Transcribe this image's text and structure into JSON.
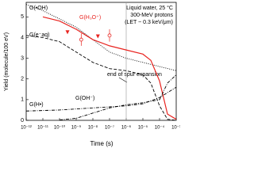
{
  "chart_data": {
    "type": "line",
    "xlabel": "Time (s)",
    "ylabel": "Yield (molecule/100 eV)",
    "xscale": "log",
    "xlim": [
      1e-12,
      0.001
    ],
    "ylim": [
      0,
      5.7
    ],
    "xticks": [
      {
        "value": 1e-12,
        "label": "10⁻¹²"
      },
      {
        "value": 1e-11,
        "label": "10⁻¹¹"
      },
      {
        "value": 1e-10,
        "label": "10⁻¹⁰"
      },
      {
        "value": 1e-09,
        "label": "10⁻⁹"
      },
      {
        "value": 1e-08,
        "label": "10⁻⁸"
      },
      {
        "value": 1e-07,
        "label": "10⁻⁷"
      },
      {
        "value": 1e-06,
        "label": "10⁻⁶"
      },
      {
        "value": 1e-05,
        "label": "10⁻⁵"
      },
      {
        "value": 0.0001,
        "label": "10⁻⁴"
      },
      {
        "value": 0.001,
        "label": "10⁻³"
      }
    ],
    "yticks": [
      0,
      1,
      2,
      3,
      4,
      5
    ],
    "series": [
      {
        "name": "G(•OH)",
        "color": "#000000",
        "style": "dot",
        "x": [
          1e-12,
          1e-11,
          1e-10,
          1e-09,
          1e-08,
          1e-07,
          1e-06,
          1e-05,
          0.0001,
          0.001
        ],
        "values": [
          5.6,
          5.3,
          4.9,
          4.5,
          3.9,
          3.3,
          3.0,
          2.8,
          2.6,
          2.4
        ]
      },
      {
        "name": "G(e⁻aq)",
        "color": "#000000",
        "style": "dash",
        "x": [
          1e-12,
          1e-11,
          1e-10,
          1e-09,
          1e-08,
          1e-07,
          1e-06,
          1e-05,
          3e-05,
          0.0001,
          0.0003,
          0.001
        ],
        "values": [
          4.1,
          4.0,
          3.8,
          3.3,
          2.8,
          2.5,
          2.4,
          2.2,
          1.8,
          0.7,
          0.05,
          0
        ]
      },
      {
        "name": "G(H₃O⁺)",
        "color": "#e8231f",
        "style": "solid",
        "x": [
          1e-11,
          1e-10,
          1e-09,
          1e-08,
          1e-07,
          1e-06,
          1e-05,
          3e-05,
          0.0001,
          0.0003,
          0.001
        ],
        "values": [
          5.0,
          4.8,
          4.4,
          3.9,
          3.6,
          3.4,
          3.2,
          2.9,
          1.9,
          0.3,
          0.05
        ]
      },
      {
        "name": "G(H•)",
        "color": "#000000",
        "style": "dashdot",
        "x": [
          1e-12,
          1e-10,
          1e-08,
          1e-07,
          1e-06,
          1e-05,
          0.0001,
          0.001
        ],
        "values": [
          0.45,
          0.5,
          0.6,
          0.65,
          0.7,
          0.8,
          1.1,
          1.6
        ]
      },
      {
        "name": "G(OH⁻)",
        "color": "#000000",
        "style": "dashdot",
        "x": [
          1e-10,
          1e-09,
          1e-08,
          1e-07,
          1e-06,
          1e-05,
          0.0001,
          0.0003,
          0.001
        ],
        "values": [
          0.02,
          0.1,
          0.35,
          0.6,
          0.75,
          0.85,
          1.0,
          1.8,
          2.2
        ]
      }
    ],
    "points": {
      "color": "#e8231f",
      "x": [
        2e-09,
        1e-07
      ],
      "values": [
        3.9,
        4.1
      ],
      "errors": [
        0.3,
        0.3
      ]
    },
    "arrows": {
      "color": "#e8231f",
      "x": [
        3e-10,
        2e-08
      ],
      "values": [
        4.2,
        4.0
      ]
    },
    "vline": 1e-06,
    "annotations": [
      "Liquid water, 25 °C",
      "300-MeV protons",
      "(LET ~ 0.3 keV/μm)",
      "end of spur expansion"
    ]
  }
}
